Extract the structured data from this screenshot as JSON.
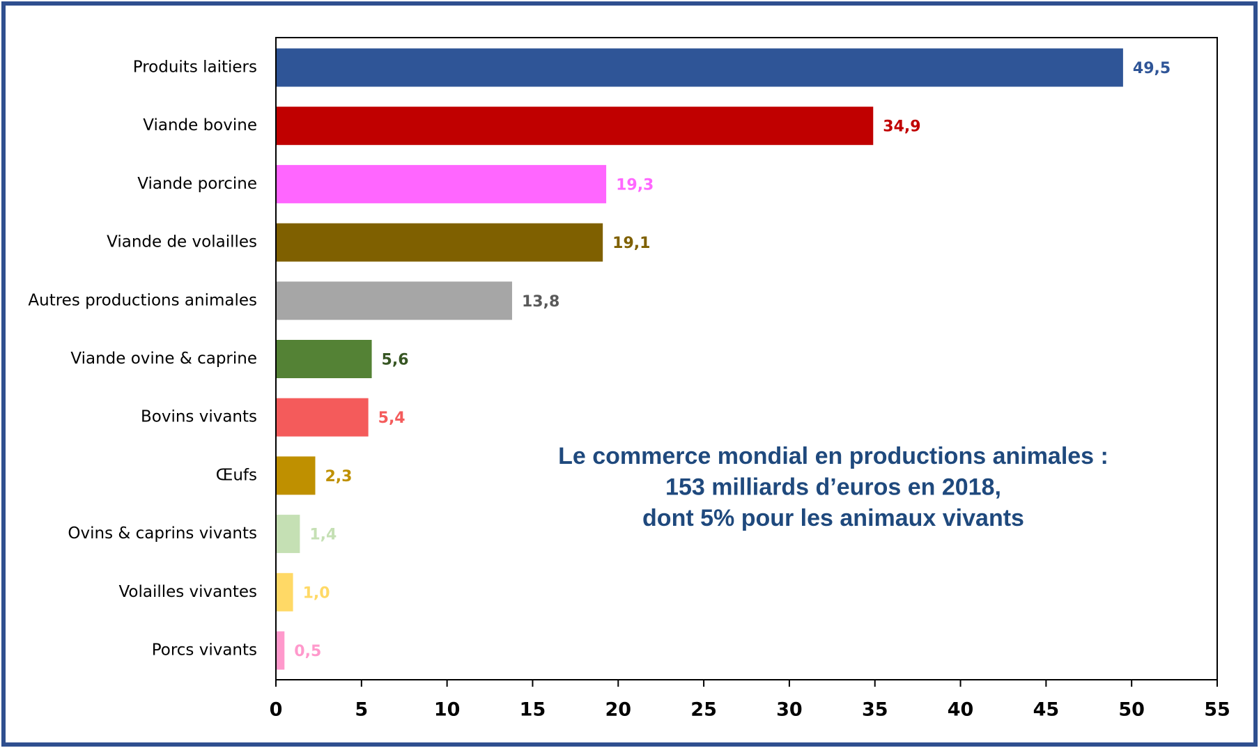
{
  "chart_data": {
    "type": "bar",
    "orientation": "horizontal",
    "categories": [
      "Produits laitiers",
      "Viande bovine",
      "Viande porcine",
      "Viande de volailles",
      "Autres productions animales",
      "Viande ovine & caprine",
      "Bovins vivants",
      "Œufs",
      "Ovins & caprins vivants",
      "Volailles vivantes",
      "Porcs vivants"
    ],
    "values": [
      49.5,
      34.9,
      19.3,
      19.1,
      13.8,
      5.6,
      5.4,
      2.3,
      1.4,
      1.0,
      0.5
    ],
    "value_labels": [
      "49,5",
      "34,9",
      "19,3",
      "19,1",
      "13,8",
      "5,6",
      "5,4",
      "2,3",
      "1,4",
      "1,0",
      "0,5"
    ],
    "colors": [
      "#2f5597",
      "#c00000",
      "#ff66ff",
      "#7f6000",
      "#a6a6a6",
      "#548235",
      "#f45b5b",
      "#bf9000",
      "#c5e0b4",
      "#ffd966",
      "#ff99cc"
    ],
    "value_label_colors": [
      "#2f5597",
      "#c00000",
      "#ff66ff",
      "#7f6000",
      "#595959",
      "#375623",
      "#f45b5b",
      "#bf9000",
      "#c5e0b4",
      "#ffd966",
      "#ff99cc"
    ],
    "xlim": [
      0,
      55
    ],
    "xticks": [
      0,
      5,
      10,
      15,
      20,
      25,
      30,
      35,
      40,
      45,
      50,
      55
    ],
    "annotation": [
      "Le commerce mondial en productions animales :",
      "153 milliards d’euros en 2018,",
      "dont 5% pour les animaux vivants"
    ]
  }
}
